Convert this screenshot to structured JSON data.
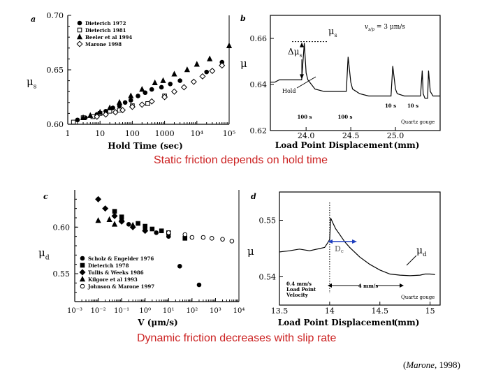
{
  "captions": {
    "static": "Static friction depends on hold time",
    "dynamic": "Dynamic friction decreases with slip rate"
  },
  "credit": {
    "author": "Marone",
    "year": "1998"
  },
  "colors": {
    "caption": "#cc2222",
    "ink": "#000000",
    "dc_arrow": "#1f3fbf"
  },
  "chart_data": [
    {
      "id": "a",
      "panel_label": "a",
      "type": "scatter",
      "xscale": "log",
      "xlim": [
        1,
        100000
      ],
      "ylim": [
        0.6,
        0.7
      ],
      "xlabel": "Hold Time (sec)",
      "ylabel_main": "μ",
      "ylabel_sub": "s",
      "xticks": [
        "1",
        "10",
        "100",
        "1000",
        "10⁴",
        "10⁵"
      ],
      "yticks": [
        "0.60",
        "0.65",
        "0.70"
      ],
      "series": [
        {
          "name": "Dieterich 1972",
          "marker": "filled-circle",
          "x": [
            2,
            3.5,
            8,
            15,
            25,
            40,
            60,
            90,
            150,
            250,
            400,
            800,
            1500,
            3000,
            20000,
            60000
          ],
          "y": [
            0.604,
            0.606,
            0.609,
            0.612,
            0.615,
            0.617,
            0.62,
            0.622,
            0.626,
            0.629,
            0.632,
            0.634,
            0.637,
            0.64,
            0.648,
            0.657
          ]
        },
        {
          "name": "Dieterich 1981",
          "marker": "open-square",
          "x": [
            1.5,
            3,
            6,
            10,
            20,
            40,
            100,
            300,
            1000
          ],
          "y": [
            0.602,
            0.606,
            0.607,
            0.61,
            0.612,
            0.613,
            0.617,
            0.619,
            0.626
          ]
        },
        {
          "name": "Beeler et al 1994",
          "marker": "filled-triangle",
          "x": [
            3,
            5,
            10,
            20,
            40,
            90,
            200,
            500,
            900,
            2000,
            5000,
            10000,
            25000,
            100000
          ],
          "y": [
            0.606,
            0.608,
            0.611,
            0.615,
            0.62,
            0.626,
            0.632,
            0.638,
            0.64,
            0.646,
            0.65,
            0.655,
            0.66,
            0.672
          ]
        },
        {
          "name": "Marone 1998",
          "marker": "open-diamond",
          "x": [
            8,
            15,
            30,
            50,
            100,
            200,
            400,
            1000,
            2000,
            4000,
            8000,
            15000,
            30000,
            60000
          ],
          "y": [
            0.607,
            0.609,
            0.611,
            0.613,
            0.616,
            0.618,
            0.621,
            0.625,
            0.63,
            0.634,
            0.639,
            0.644,
            0.649,
            0.654
          ]
        }
      ]
    },
    {
      "id": "b",
      "panel_label": "b",
      "type": "line",
      "xlim": [
        23.6,
        25.5
      ],
      "ylim": [
        0.62,
        0.67
      ],
      "xlabel": "Load Point Displacement",
      "xlabel_unit": "(mm)",
      "ylabel_main": "μ",
      "xticks": [
        "24.0",
        "24.5",
        "25.0"
      ],
      "yticks": [
        "0.62",
        "0.64",
        "0.66"
      ],
      "x": [
        23.6,
        23.65,
        23.7,
        23.8,
        23.9,
        23.95,
        23.98,
        24.0,
        24.02,
        24.1,
        24.2,
        24.3,
        24.4,
        24.45,
        24.47,
        24.5,
        24.52,
        24.6,
        24.7,
        24.8,
        24.9,
        24.95,
        24.97,
        25.0,
        25.02,
        25.1,
        25.2,
        25.28,
        25.3,
        25.31,
        25.33,
        25.36,
        25.37,
        25.39,
        25.42,
        25.5
      ],
      "y": [
        0.641,
        0.641,
        0.642,
        0.642,
        0.642,
        0.642,
        0.658,
        0.645,
        0.642,
        0.638,
        0.637,
        0.637,
        0.637,
        0.637,
        0.652,
        0.641,
        0.638,
        0.636,
        0.635,
        0.635,
        0.635,
        0.635,
        0.648,
        0.638,
        0.636,
        0.635,
        0.635,
        0.635,
        0.646,
        0.636,
        0.634,
        0.634,
        0.646,
        0.637,
        0.635,
        0.635
      ],
      "annotations": {
        "mu_s": "μ",
        "mu_s_sub": "s",
        "delta_mu": "Δμ",
        "delta_mu_sub": "s",
        "hold": "Hold",
        "vslip": "v",
        "vslip_sub": "s/p",
        "vslip_value": "= 3 μm/s",
        "holds": [
          "100 s",
          "100 s",
          "10 s",
          "10 s"
        ],
        "material": "Quartz gouge"
      }
    },
    {
      "id": "c",
      "panel_label": "c",
      "type": "scatter",
      "xscale": "log",
      "xlim": [
        0.001,
        10000
      ],
      "ylim": [
        0.52,
        0.64
      ],
      "xlabel": "V (μm/s)",
      "ylabel_main": "μ",
      "ylabel_sub": "d",
      "xticks": [
        "10⁻³",
        "10⁻²",
        "10⁻¹",
        "10⁰",
        "10¹",
        "10²",
        "10³",
        "10⁴"
      ],
      "yticks": [
        "0.55",
        "0.60"
      ],
      "series": [
        {
          "name": "Scholz & Engelder 1976",
          "marker": "filled-circle",
          "x": [
            0.2,
            1,
            3,
            10,
            30,
            200
          ],
          "y": [
            0.603,
            0.598,
            0.594,
            0.59,
            0.558,
            0.538
          ]
        },
        {
          "name": "Dieterich 1978",
          "marker": "filled-square",
          "x": [
            0.05,
            0.1,
            0.5,
            1,
            2,
            5,
            10,
            50
          ],
          "y": [
            0.617,
            0.611,
            0.604,
            0.601,
            0.598,
            0.596,
            0.594,
            0.588
          ]
        },
        {
          "name": "Tullis & Weeks 1986",
          "marker": "filled-diamond",
          "x": [
            0.01,
            0.02,
            0.05,
            0.1,
            0.3,
            1
          ],
          "y": [
            0.63,
            0.62,
            0.612,
            0.606,
            0.6,
            0.596
          ]
        },
        {
          "name": "Kilgore et al 1993",
          "marker": "filled-triangle",
          "x": [
            0.01,
            0.03,
            0.05,
            0.1,
            0.3
          ],
          "y": [
            0.607,
            0.608,
            0.603,
            0.609,
            0.602
          ]
        },
        {
          "name": "Johnson & Marone 1997",
          "marker": "open-circle",
          "x": [
            10,
            50,
            100,
            300,
            700,
            2000,
            5000
          ],
          "y": [
            0.594,
            0.592,
            0.589,
            0.589,
            0.588,
            0.587,
            0.585
          ]
        }
      ]
    },
    {
      "id": "d",
      "panel_label": "d",
      "type": "line",
      "xlim": [
        13.5,
        15.1
      ],
      "ylim": [
        0.535,
        0.555
      ],
      "xlabel": "Load Point Displacement",
      "xlabel_unit": "(mm)",
      "ylabel_main": "μ",
      "xticks": [
        "13.5",
        "14",
        "14.5",
        "15"
      ],
      "yticks": [
        "0.54",
        "0.55"
      ],
      "x": [
        13.5,
        13.6,
        13.7,
        13.8,
        13.9,
        13.95,
        13.98,
        14.0,
        14.01,
        14.03,
        14.06,
        14.1,
        14.15,
        14.2,
        14.3,
        14.4,
        14.5,
        14.6,
        14.7,
        14.8,
        14.9,
        14.95,
        15.0,
        15.05
      ],
      "y": [
        0.5444,
        0.5446,
        0.5449,
        0.5446,
        0.545,
        0.5452,
        0.546,
        0.5466,
        0.5504,
        0.5496,
        0.5485,
        0.5475,
        0.5462,
        0.5452,
        0.5435,
        0.5422,
        0.5412,
        0.5405,
        0.5403,
        0.5402,
        0.5403,
        0.5405,
        0.5405,
        0.5404
      ],
      "annotations": {
        "dc": "Dc",
        "mu_d": "μ",
        "mu_d_sub": "d",
        "step_before": [
          "0.4 mm/s",
          "Load Point",
          "Velocity"
        ],
        "step_after": "4 mm/s",
        "material": "Quartz gouge"
      }
    }
  ]
}
